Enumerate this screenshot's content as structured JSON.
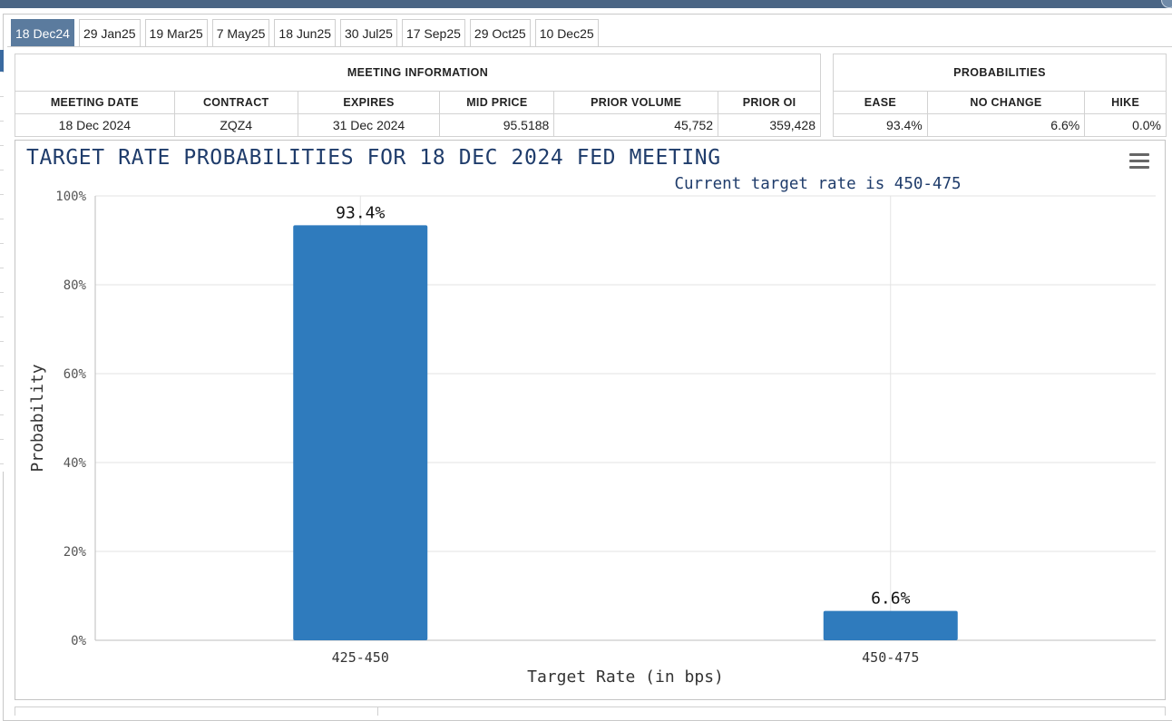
{
  "tabs": [
    {
      "label": "18 Dec24",
      "active": true
    },
    {
      "label": "29 Jan25",
      "active": false
    },
    {
      "label": "19 Mar25",
      "active": false
    },
    {
      "label": "7 May25",
      "active": false
    },
    {
      "label": "18 Jun25",
      "active": false
    },
    {
      "label": "30 Jul25",
      "active": false
    },
    {
      "label": "17 Sep25",
      "active": false
    },
    {
      "label": "29 Oct25",
      "active": false
    },
    {
      "label": "10 Dec25",
      "active": false
    }
  ],
  "meeting_info": {
    "header": "MEETING INFORMATION",
    "columns": {
      "meeting_date": "MEETING DATE",
      "contract": "CONTRACT",
      "expires": "EXPIRES",
      "mid_price": "MID PRICE",
      "prior_volume": "PRIOR VOLUME",
      "prior_oi": "PRIOR OI"
    },
    "row": {
      "meeting_date": "18 Dec 2024",
      "contract": "ZQZ4",
      "expires": "31 Dec 2024",
      "mid_price": "95.5188",
      "prior_volume": "45,752",
      "prior_oi": "359,428"
    }
  },
  "probabilities": {
    "header": "PROBABILITIES",
    "columns": {
      "ease": "EASE",
      "no_change": "NO CHANGE",
      "hike": "HIKE"
    },
    "row": {
      "ease": "93.4%",
      "no_change": "6.6%",
      "hike": "0.0%"
    }
  },
  "colors": {
    "bar": "#2f7bbd",
    "title": "#1f3c6b",
    "active_tab": "#5b7b9e",
    "grid": "#e3e3e3"
  },
  "chart_menu_icon": "hamburger-menu-icon",
  "chart_data": {
    "type": "bar",
    "title": "TARGET RATE PROBABILITIES FOR 18 DEC 2024 FED MEETING",
    "subtitle": "Current target rate is 450-475",
    "xlabel": "Target Rate (in bps)",
    "ylabel": "Probability",
    "categories": [
      "425-450",
      "450-475"
    ],
    "values": [
      93.4,
      6.6
    ],
    "data_labels": [
      "93.4%",
      "6.6%"
    ],
    "ylim": [
      0,
      100
    ],
    "yticks": [
      0,
      20,
      40,
      60,
      80,
      100
    ],
    "ytick_labels": [
      "0%",
      "20%",
      "40%",
      "60%",
      "80%",
      "100%"
    ],
    "grid": true,
    "legend": false
  }
}
